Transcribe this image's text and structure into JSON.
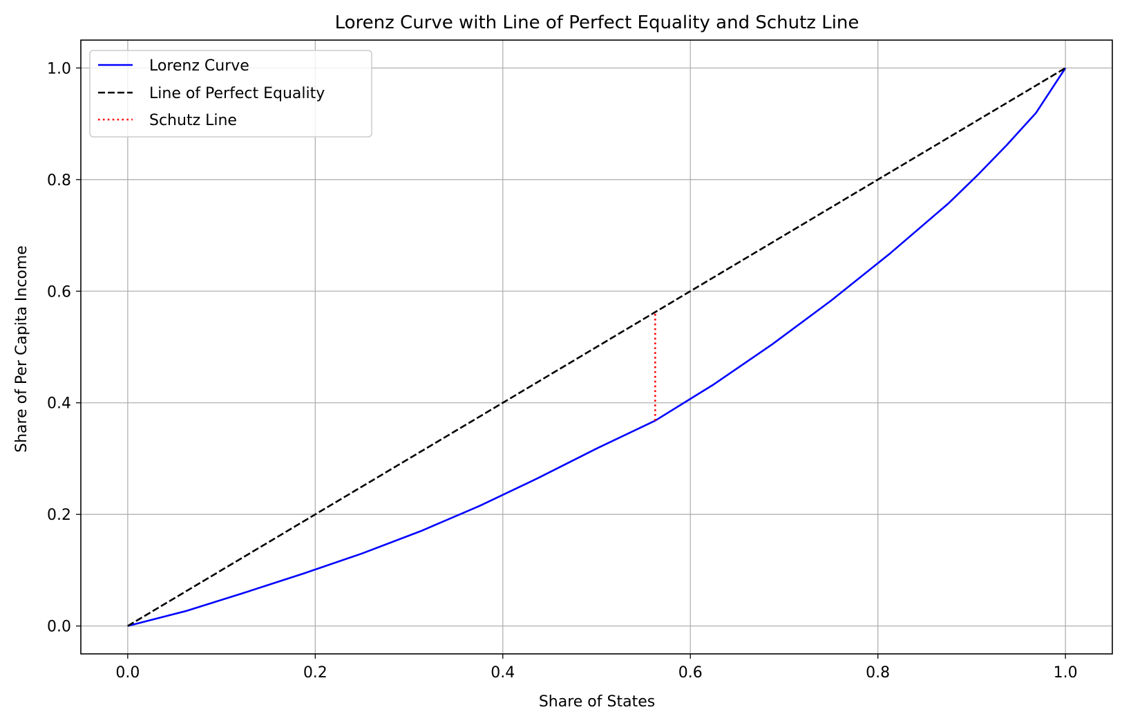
{
  "chart_data": {
    "type": "line",
    "title": "Lorenz Curve with Line of Perfect Equality and Schutz Line",
    "xlabel": "Share of States",
    "ylabel": "Share of Per Capita Income",
    "xlim": [
      -0.05,
      1.05
    ],
    "ylim": [
      -0.05,
      1.05
    ],
    "xticks": [
      0.0,
      0.2,
      0.4,
      0.6,
      0.8,
      1.0
    ],
    "yticks": [
      0.0,
      0.2,
      0.4,
      0.6,
      0.8,
      1.0
    ],
    "xtick_labels": [
      "0.0",
      "0.2",
      "0.4",
      "0.6",
      "0.8",
      "1.0"
    ],
    "ytick_labels": [
      "0.0",
      "0.2",
      "0.4",
      "0.6",
      "0.8",
      "1.0"
    ],
    "grid": true,
    "legend_position": "upper-left",
    "series": [
      {
        "name": "Lorenz Curve",
        "color": "#0000ff",
        "style": "solid",
        "x": [
          0.0,
          0.0625,
          0.125,
          0.1875,
          0.25,
          0.3125,
          0.375,
          0.4375,
          0.5,
          0.5625,
          0.625,
          0.6875,
          0.75,
          0.8125,
          0.875,
          0.9063,
          0.9375,
          0.9688,
          1.0
        ],
        "y": [
          0.0,
          0.027,
          0.06,
          0.094,
          0.13,
          0.17,
          0.215,
          0.265,
          0.318,
          0.368,
          0.433,
          0.505,
          0.583,
          0.667,
          0.757,
          0.808,
          0.862,
          0.92,
          1.0
        ]
      },
      {
        "name": "Line of Perfect Equality",
        "color": "#000000",
        "style": "dashed",
        "x": [
          0.0,
          1.0
        ],
        "y": [
          0.0,
          1.0
        ]
      },
      {
        "name": "Schutz Line",
        "color": "#ff0000",
        "style": "dotted",
        "x": [
          0.5625,
          0.5625
        ],
        "y": [
          0.368,
          0.5625
        ]
      }
    ]
  }
}
